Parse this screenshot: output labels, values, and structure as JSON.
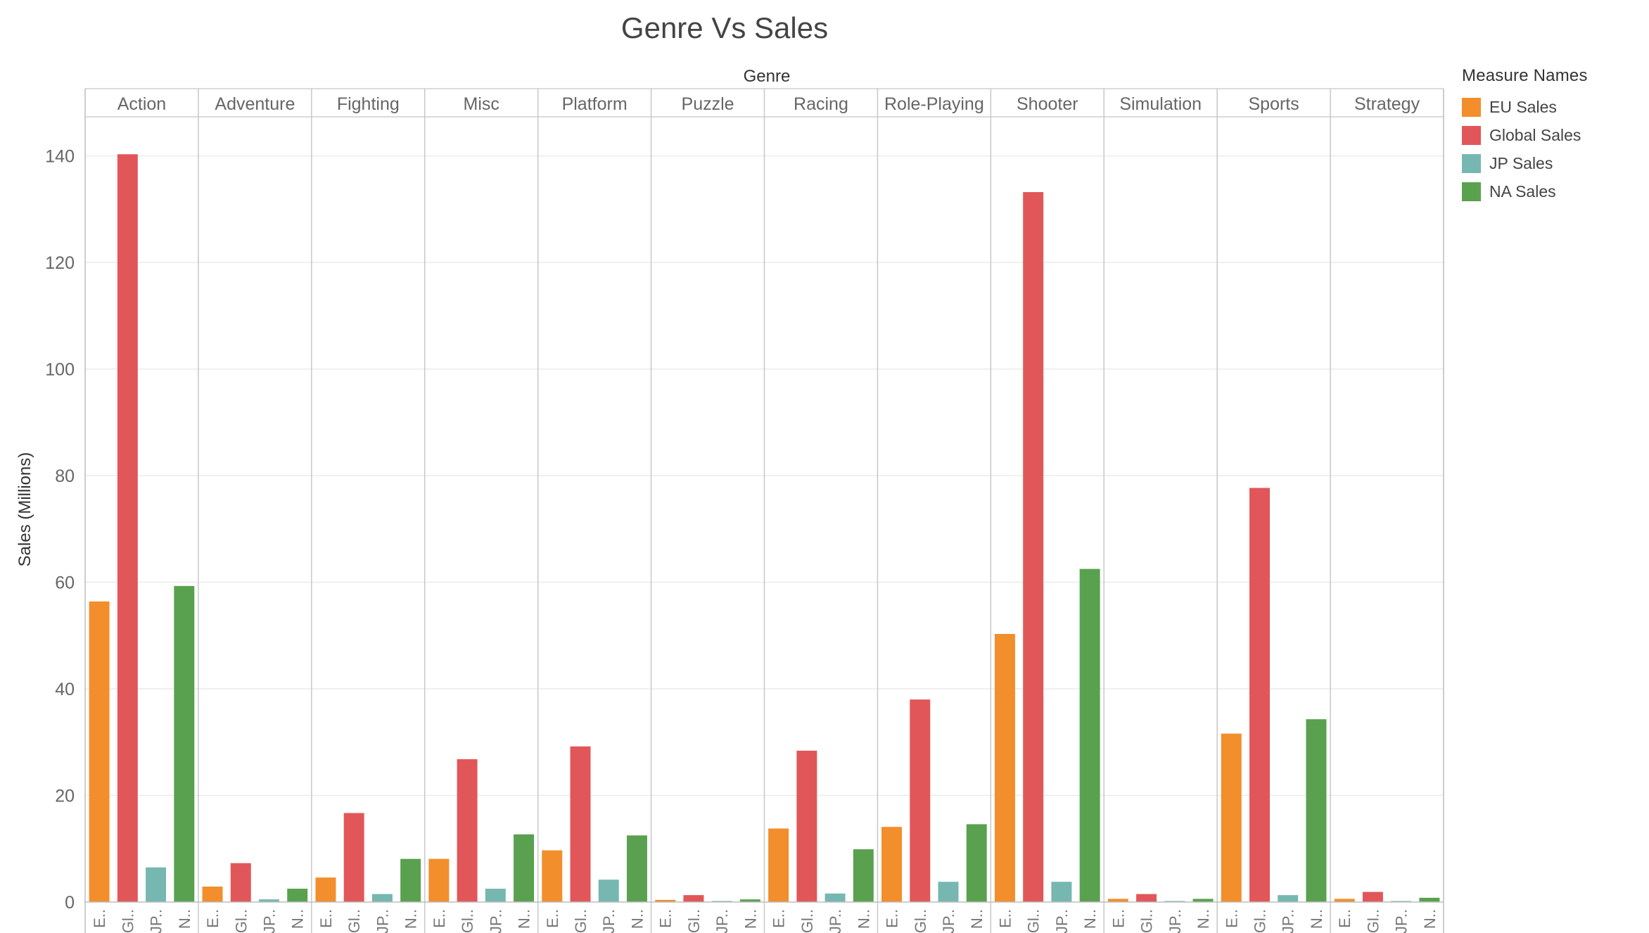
{
  "chart_data": {
    "type": "bar",
    "title": "Genre Vs Sales",
    "xlabel": "Genre",
    "ylabel": "Sales (Millions)",
    "ylim": [
      0,
      142
    ],
    "yticks": [
      0,
      20,
      40,
      60,
      80,
      100,
      120,
      140
    ],
    "grid": true,
    "legend_placement": "right",
    "legend_title": "Measure Names",
    "categories": [
      "Action",
      "Adventure",
      "Fighting",
      "Misc",
      "Platform",
      "Puzzle",
      "Racing",
      "Role-Playing",
      "Shooter",
      "Simulation",
      "Sports",
      "Strategy"
    ],
    "measure_tick_labels": [
      "E..",
      "Gl..",
      "JP..",
      "N.."
    ],
    "series": [
      {
        "name": "EU Sales",
        "color": "#f28e2b",
        "values": [
          56.4,
          2.9,
          4.6,
          8.1,
          9.7,
          0.4,
          13.8,
          14.1,
          50.3,
          0.6,
          31.6,
          0.6
        ]
      },
      {
        "name": "Global Sales",
        "color": "#e15759",
        "values": [
          140.3,
          7.3,
          16.7,
          26.8,
          29.2,
          1.3,
          28.4,
          38.0,
          133.2,
          1.5,
          77.7,
          1.9
        ]
      },
      {
        "name": "JP Sales",
        "color": "#76b7b2",
        "values": [
          6.5,
          0.5,
          1.5,
          2.5,
          4.2,
          0.2,
          1.6,
          3.8,
          3.8,
          0.2,
          1.3,
          0.2
        ]
      },
      {
        "name": "NA Sales",
        "color": "#59a14f",
        "values": [
          59.3,
          2.5,
          8.1,
          12.7,
          12.5,
          0.5,
          9.9,
          14.6,
          62.5,
          0.6,
          34.3,
          0.8
        ]
      }
    ]
  }
}
